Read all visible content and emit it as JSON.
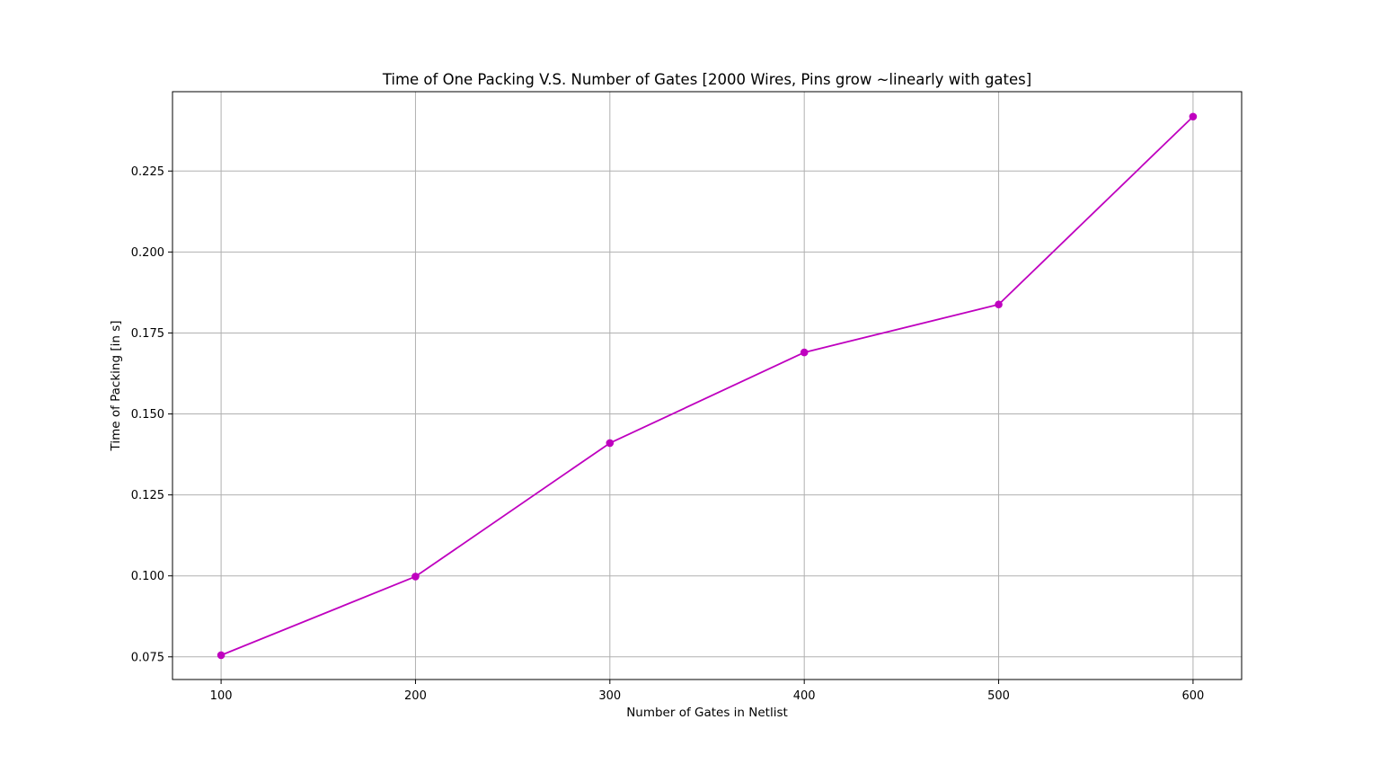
{
  "chart_data": {
    "type": "line",
    "title": "Time of One Packing V.S. Number of Gates [2000 Wires, Pins grow ~linearly with gates]",
    "xlabel": "Number of Gates in Netlist",
    "ylabel": "Time of Packing [in s]",
    "x": [
      100,
      200,
      300,
      400,
      500,
      600
    ],
    "series": [
      {
        "values": [
          0.0755,
          0.0998,
          0.141,
          0.169,
          0.1838,
          0.2418
        ],
        "color": "#bf00bf",
        "marker": "circle"
      }
    ],
    "xlim": [
      75,
      625
    ],
    "ylim": [
      0.068,
      0.2495
    ],
    "xticks": [
      100,
      200,
      300,
      400,
      500,
      600
    ],
    "xtick_labels": [
      "100",
      "200",
      "300",
      "400",
      "500",
      "600"
    ],
    "yticks": [
      0.075,
      0.1,
      0.125,
      0.15,
      0.175,
      0.2,
      0.225
    ],
    "ytick_labels": [
      "0.075",
      "0.100",
      "0.125",
      "0.150",
      "0.175",
      "0.200",
      "0.225"
    ],
    "grid": true,
    "legend": "none"
  }
}
